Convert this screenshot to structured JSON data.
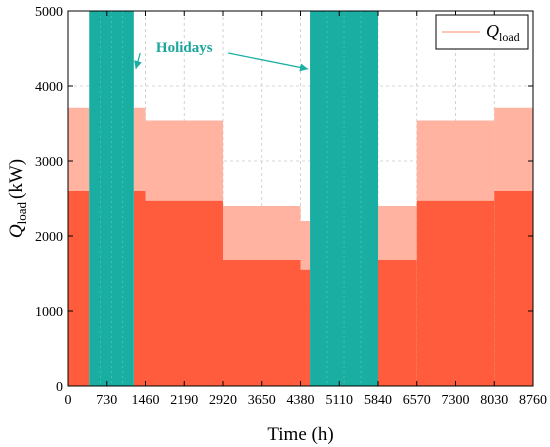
{
  "chart_data": {
    "type": "area",
    "xlabel": "Time (h)",
    "ylabel_main": "Q",
    "ylabel_sub": "load",
    "ylabel_unit": "(kW)",
    "xlim": [
      0,
      8760
    ],
    "ylim": [
      0,
      5000
    ],
    "x_ticks": [
      0,
      730,
      1460,
      2190,
      2920,
      3650,
      4380,
      5110,
      5840,
      6570,
      7300,
      8030,
      8760
    ],
    "y_ticks": [
      0,
      1000,
      2000,
      3000,
      4000,
      5000
    ],
    "grid": true,
    "legend_position": "top-right",
    "series": [
      {
        "name_main": "Q",
        "name_sub": "load",
        "color": "#ff5c3d",
        "band_color": "#ffb3a0",
        "segments": [
          {
            "x0": 0,
            "x1": 400,
            "base": 2600,
            "peak": 3710
          },
          {
            "x0": 1240,
            "x1": 1460,
            "base": 2600,
            "peak": 3710
          },
          {
            "x0": 1460,
            "x1": 2920,
            "base": 2470,
            "peak": 3540
          },
          {
            "x0": 2920,
            "x1": 4380,
            "base": 1680,
            "peak": 2400
          },
          {
            "x0": 4380,
            "x1": 4560,
            "base": 1550,
            "peak": 2200
          },
          {
            "x0": 5840,
            "x1": 6570,
            "base": 1680,
            "peak": 2400
          },
          {
            "x0": 6570,
            "x1": 8030,
            "base": 2470,
            "peak": 3540
          },
          {
            "x0": 8030,
            "x1": 8760,
            "base": 2600,
            "peak": 3710
          }
        ]
      }
    ],
    "holidays": [
      {
        "x0": 400,
        "x1": 1240
      },
      {
        "x0": 4560,
        "x1": 5840
      }
    ],
    "holiday_color": "#1aaea2",
    "annotation": {
      "label": "Holidays",
      "x": 2190,
      "y": 4520
    }
  }
}
